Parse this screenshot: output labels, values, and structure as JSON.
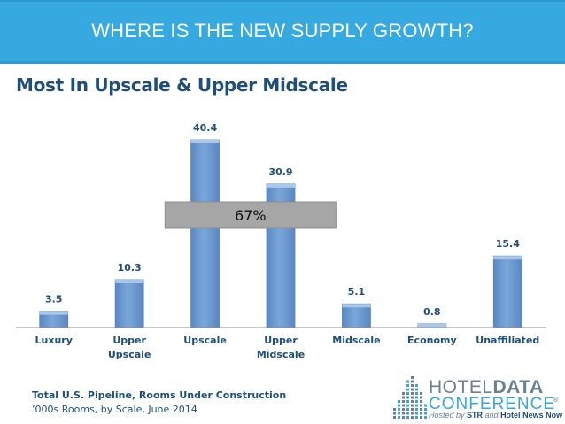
{
  "header": {
    "title": "WHERE IS THE NEW SUPPLY GROWTH?"
  },
  "subtitle": "Most In Upscale & Upper Midscale",
  "colors": {
    "header_bg": "#36a9e1",
    "bar": "#7aa7da",
    "bar_edge": "#5b87c2",
    "annotation_box": "#a6a6a6",
    "text_dark": "#1f4e79"
  },
  "chart_data": {
    "type": "bar",
    "title": "Most In Upscale & Upper Midscale",
    "categories": [
      [
        "Luxury"
      ],
      [
        "Upper",
        "Upscale"
      ],
      [
        "Upscale"
      ],
      [
        "Upper",
        "Midscale"
      ],
      [
        "Midscale"
      ],
      [
        "Economy"
      ],
      [
        "Unaffiliated"
      ]
    ],
    "values": [
      3.5,
      10.3,
      40.4,
      30.9,
      5.1,
      0.8,
      15.4
    ],
    "value_labels": [
      "3.5",
      "10.3",
      "40.4",
      "30.9",
      "5.1",
      "0.8",
      "15.4"
    ],
    "ylim": [
      0,
      42
    ],
    "xlabel": "",
    "ylabel": "",
    "grid": false,
    "annotation": {
      "text": "67%",
      "spans_categories": [
        "Upscale",
        "Upper Midscale"
      ]
    }
  },
  "footnote": {
    "line1": "Total U.S. Pipeline, Rooms Under Construction",
    "line2": "’000s Rooms, by Scale, June 2014"
  },
  "logo": {
    "hotel": "HOTEL",
    "data": "DATA",
    "conference": "CONFERENCE",
    "reg_mark": "®",
    "hosted_prefix": "Hosted by ",
    "hosted_str": "STR",
    "hosted_and": " and ",
    "hosted_news": "Hotel News Now"
  }
}
